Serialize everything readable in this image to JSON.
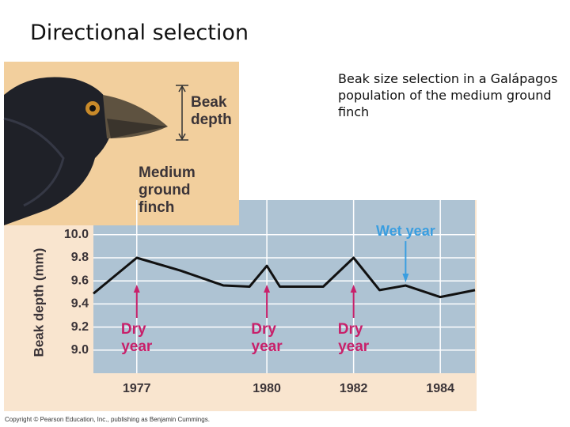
{
  "header": {
    "title": "Directional selection"
  },
  "caption": "Beak size selection in a Galápagos population of the medium ground finch",
  "figure_labels": {
    "beak": "Beak depth",
    "finch": "Medium ground finch"
  },
  "copyright": "Copyright © Pearson Education, Inc., publishing as Benjamin Cummings.",
  "chart_data": {
    "type": "line",
    "y_label": "Beak depth (mm)",
    "x": [
      1976,
      1977,
      1978,
      1979,
      1979.6,
      1980,
      1980.3,
      1981.3,
      1982,
      1982.6,
      1983.2,
      1984,
      1984.8
    ],
    "series": [
      {
        "name": "Beak depth",
        "color": "#111111",
        "values": [
          9.49,
          9.8,
          9.69,
          9.56,
          9.55,
          9.73,
          9.55,
          9.55,
          9.8,
          9.52,
          9.56,
          9.46,
          9.52
        ]
      }
    ],
    "xlim": [
      1976,
      1984.8
    ],
    "xticks": [
      1977,
      1980,
      1982,
      1984
    ],
    "ylim": [
      8.8,
      10.3
    ],
    "yticks": [
      {
        "value": 9.0,
        "label": "9.0"
      },
      9.2,
      9.4,
      9.6,
      9.8,
      {
        "value": 10.0,
        "label": "10.0"
      }
    ],
    "grid": true,
    "annotations": [
      {
        "lines": [
          "Dry",
          "year"
        ],
        "x": 1977,
        "direction": "up",
        "color": "#c8206a"
      },
      {
        "lines": [
          "Dry",
          "year"
        ],
        "x": 1980,
        "direction": "up",
        "color": "#c8206a"
      },
      {
        "lines": [
          "Dry",
          "year"
        ],
        "x": 1982,
        "direction": "up",
        "color": "#c8206a"
      },
      {
        "lines": [
          "Wet year"
        ],
        "x": 1983.2,
        "direction": "down",
        "color": "#3a9ee0"
      }
    ]
  }
}
